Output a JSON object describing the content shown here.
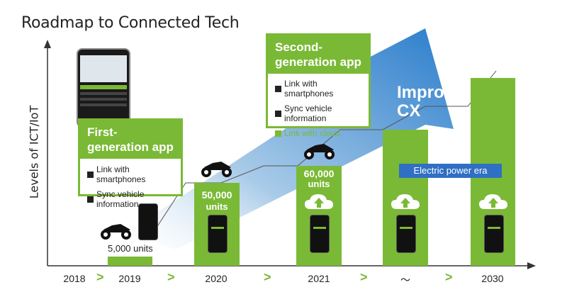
{
  "title": "Roadmap to Connected Tech",
  "y_axis_label": "Levels of ICT/IoT",
  "first_app": {
    "title_line1": "First-",
    "title_line2": "generation app",
    "items": [
      "Link with smartphones",
      "Sync vehicle information"
    ]
  },
  "second_app": {
    "title_line1": "Second-",
    "title_line2": "generation app",
    "items": [
      "Link with smartphones",
      "Sync vehicle information",
      "Link with cloud"
    ]
  },
  "arrow_label_line1": "Improve",
  "arrow_label_line2": "CX",
  "electric_era": "Electric power era",
  "timeline": [
    "2018",
    "2019",
    "2020",
    "2021",
    "～",
    "2030"
  ],
  "units": {
    "u2019": "5,000 units",
    "u2020_value": "50,000",
    "u2020_label": "units",
    "u2021_value": "60,000",
    "u2021_label": "units"
  },
  "colors": {
    "green": "#7ab935",
    "blue": "#2f6fc4",
    "arrow_light": "#e6f0f8",
    "arrow_dark": "#3e84cc"
  }
}
